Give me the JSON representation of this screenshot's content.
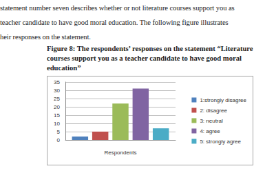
{
  "document": {
    "text": [
      "statement number seven describes whether or not literature courses support you as",
      "teacher candidate to have good moral education. The following figure illustrates",
      "heir responses on the statement."
    ],
    "caption": "Figure 8: The respondents’ responses on the statement “Literature courses support you as a teacher candidate to have good moral education”"
  },
  "chart_data": {
    "type": "bar",
    "categories": [
      "Respondents"
    ],
    "series": [
      {
        "name": "1:strongly disagree",
        "color": "#4f81bd",
        "values": [
          2
        ]
      },
      {
        "name": "2: disagree",
        "color": "#c0504d",
        "values": [
          5
        ]
      },
      {
        "name": "3: neutral",
        "color": "#9bbb59",
        "values": [
          22
        ]
      },
      {
        "name": "4: agree",
        "color": "#8064a2",
        "values": [
          31
        ]
      },
      {
        "name": "5: strongly agree",
        "color": "#4bacc6",
        "values": [
          7
        ]
      }
    ],
    "ylim": [
      0,
      35
    ],
    "yticks": [
      0,
      5,
      10,
      15,
      20,
      25,
      30,
      35
    ],
    "grid": true,
    "legend": "right"
  }
}
